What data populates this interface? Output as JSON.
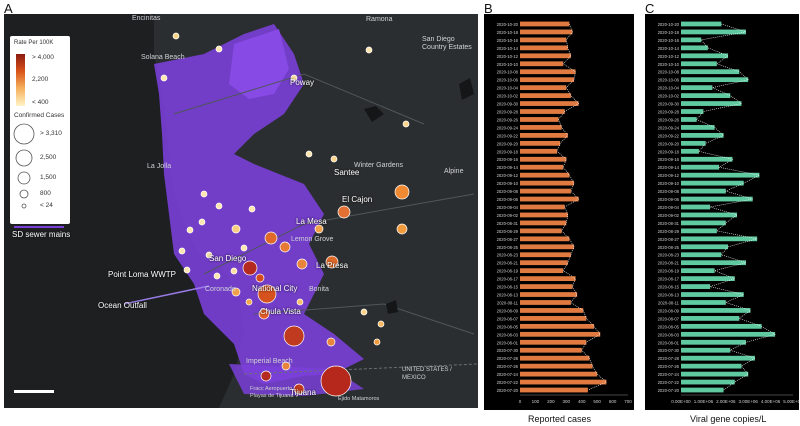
{
  "letters": {
    "a": "A",
    "b": "B",
    "c": "C"
  },
  "legend": {
    "rate_title": "Rate Per 100K",
    "rate_high": "> 4,000",
    "rate_mid": "2,200",
    "rate_low": "< 400",
    "cases_title": "Confirmed Cases",
    "cases": [
      "> 3,310",
      "2,500",
      "1,500",
      "800",
      "< 24"
    ],
    "sewer": "SD sewer mains"
  },
  "map_labels": {
    "point_loma": "Point Loma WWTP",
    "ocean_outfall": "Ocean Outfall",
    "la_mesa": "La Mesa",
    "el_cajon": "El Cajon",
    "san_diego": "San Diego",
    "national_city": "National City",
    "chula_vista": "Chula Vista",
    "la_presa": "La Presa",
    "santee": "Santee",
    "poway": "Poway",
    "tijuana": "Tijuana",
    "winter_gardens": "Winter Gardens",
    "solana_beach": "Solana Beach",
    "lemon_grove": "Lemon Grove",
    "coronado": "Coronado",
    "imperial_beach": "Imperial Beach",
    "bonita": "Bonita",
    "la_jolla": "La Jolla",
    "alpine": "Alpine",
    "san_diego_country_estates": "San Diego Country Estates",
    "ramona": "Ramona",
    "encinitas": "Encinitas",
    "mexico": "UNITED STATES / MEXICO",
    "tijuana_small": "Fracc Aeropuerto Playas de Tijuana",
    "ejido": "Ejido Matamoros"
  },
  "chart_data": [
    {
      "type": "bar",
      "orientation": "horizontal",
      "panel": "B",
      "xlabel": "Reported cases",
      "xlim": [
        0,
        700
      ],
      "xticks": [
        "0",
        "100",
        "200",
        "300",
        "400",
        "500",
        "600",
        "700"
      ],
      "categories": [
        "2020-10-20",
        "2020-10-18",
        "2020-10-16",
        "2020-10-14",
        "2020-10-12",
        "2020-10-10",
        "2020-10-08",
        "2020-10-06",
        "2020-10-04",
        "2020-10-02",
        "2020-09-30",
        "2020-09-28",
        "2020-09-26",
        "2020-09-24",
        "2020-09-22",
        "2020-09-20",
        "2020-09-18",
        "2020-09-16",
        "2020-09-14",
        "2020-09-12",
        "2020-09-10",
        "2020-09-08",
        "2020-09-06",
        "2020-09-04",
        "2020-09-02",
        "2020-08-31",
        "2020-08-29",
        "2020-08-27",
        "2020-08-25",
        "2020-08-23",
        "2020-08-21",
        "2020-08-19",
        "2020-08-17",
        "2020-08-15",
        "2020-08-13",
        "2020-08-11",
        "2020-08-09",
        "2020-08-07",
        "2020-08-05",
        "2020-08-03",
        "2020-08-01",
        "2020-07-30",
        "2020-07-28",
        "2020-07-26",
        "2020-07-24",
        "2020-07-22",
        "2020-07-20"
      ],
      "values": [
        320,
        340,
        300,
        310,
        330,
        280,
        360,
        350,
        300,
        330,
        380,
        290,
        250,
        270,
        310,
        260,
        240,
        300,
        280,
        320,
        350,
        330,
        380,
        290,
        310,
        300,
        270,
        320,
        350,
        330,
        310,
        280,
        360,
        340,
        370,
        330,
        410,
        430,
        480,
        520,
        430,
        400,
        450,
        470,
        500,
        560,
        440
      ],
      "color": "#e07a40"
    },
    {
      "type": "bar",
      "orientation": "horizontal",
      "panel": "C",
      "xlabel": "Viral gene copies/L",
      "xlim": [
        0,
        5000000
      ],
      "xticks": [
        "0.00E+00",
        "1.00E+06",
        "2.00E+06",
        "3.00E+06",
        "4.00E+06",
        "5.00E+06"
      ],
      "categories": [
        "2020-10-20",
        "2020-10-18",
        "2020-10-16",
        "2020-10-14",
        "2020-10-12",
        "2020-10-10",
        "2020-10-08",
        "2020-10-06",
        "2020-10-04",
        "2020-10-02",
        "2020-09-30",
        "2020-09-28",
        "2020-09-26",
        "2020-09-24",
        "2020-09-22",
        "2020-09-20",
        "2020-09-18",
        "2020-09-16",
        "2020-09-14",
        "2020-09-12",
        "2020-09-10",
        "2020-09-08",
        "2020-09-06",
        "2020-09-04",
        "2020-09-02",
        "2020-08-31",
        "2020-08-29",
        "2020-08-27",
        "2020-08-25",
        "2020-08-23",
        "2020-08-21",
        "2020-08-19",
        "2020-08-17",
        "2020-08-15",
        "2020-08-13",
        "2020-08-11",
        "2020-08-09",
        "2020-08-07",
        "2020-08-05",
        "2020-08-03",
        "2020-08-01",
        "2020-07-30",
        "2020-07-28",
        "2020-07-26",
        "2020-07-24",
        "2020-07-22",
        "2020-07-20"
      ],
      "values": [
        1800000,
        2900000,
        900000,
        1200000,
        2100000,
        1600000,
        2600000,
        3000000,
        1400000,
        2200000,
        2700000,
        1000000,
        700000,
        1500000,
        1900000,
        1100000,
        800000,
        2300000,
        1700000,
        3500000,
        2800000,
        2000000,
        3200000,
        1300000,
        2500000,
        2000000,
        1600000,
        3400000,
        2100000,
        1800000,
        2900000,
        1500000,
        2400000,
        1300000,
        2800000,
        2000000,
        3100000,
        2600000,
        3600000,
        4200000,
        2900000,
        2200000,
        3300000,
        2700000,
        3000000,
        2400000,
        1900000
      ],
      "color": "#5fc9a0"
    }
  ]
}
